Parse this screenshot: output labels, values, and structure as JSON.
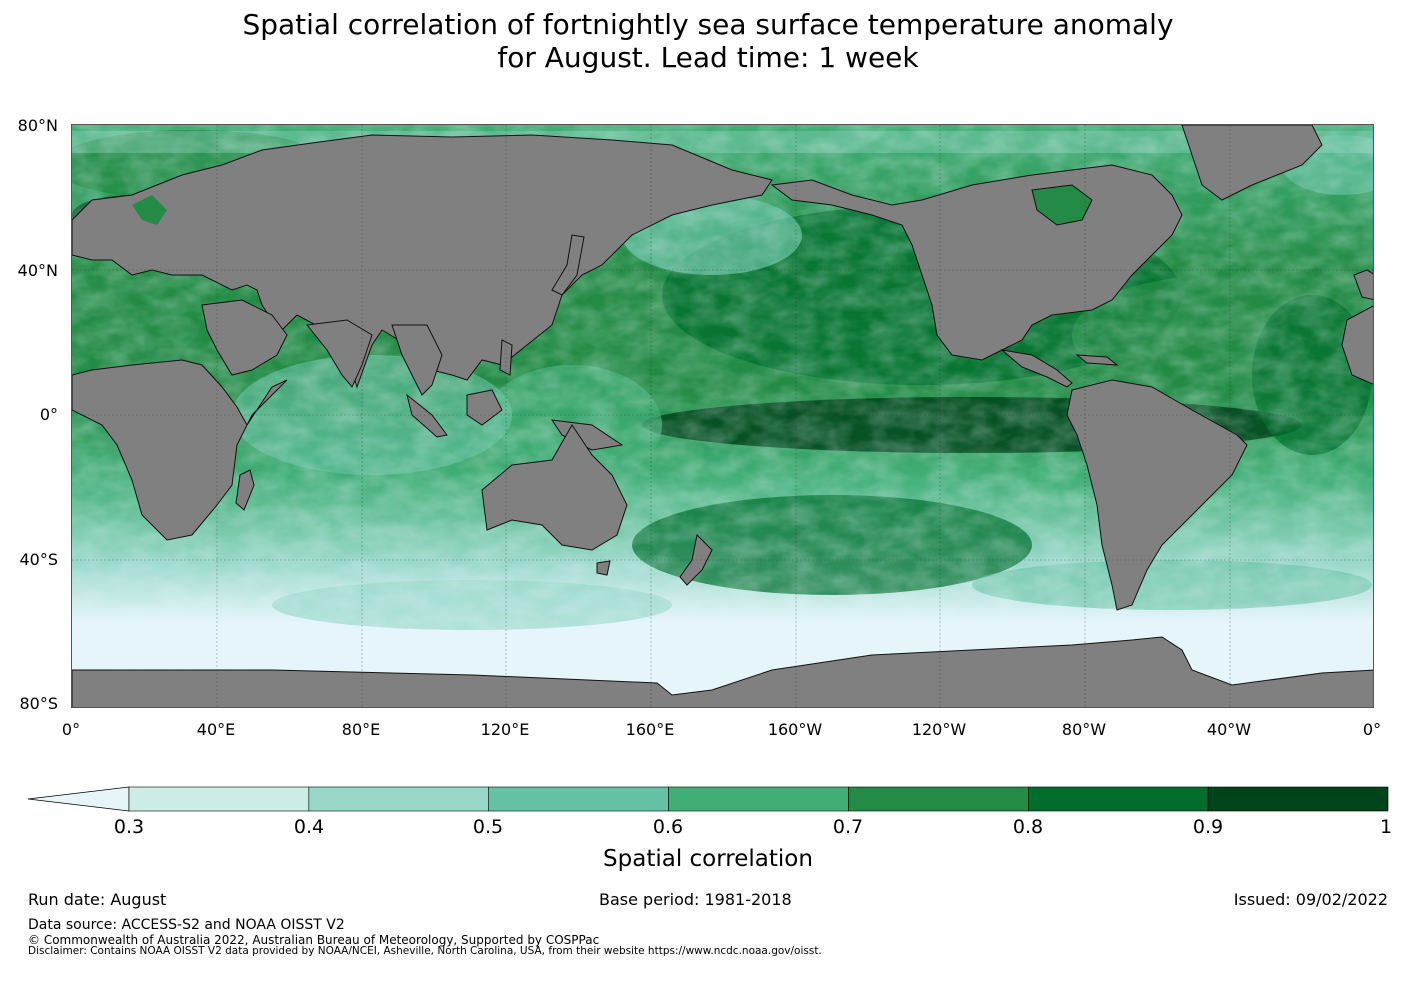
{
  "title": {
    "line1": "Spatial correlation of fortnightly sea surface temperature anomaly",
    "line2": "for August. Lead time: 1 week"
  },
  "map": {
    "lat_labels": [
      "80°N",
      "40°N",
      "0°",
      "40°S",
      "80°S"
    ],
    "lon_labels": [
      "0°",
      "40°E",
      "80°E",
      "120°E",
      "160°E",
      "160°W",
      "120°W",
      "80°W",
      "40°W",
      "0°"
    ],
    "land_color": "#808080",
    "gridlines": true
  },
  "colorbar": {
    "label": "Spatial correlation",
    "ticks": [
      "0.3",
      "0.4",
      "0.5",
      "0.6",
      "0.7",
      "0.8",
      "0.9",
      "1"
    ],
    "under_color": "#e5f5f9",
    "colors": [
      "#ccece6",
      "#99d8c9",
      "#66c2a4",
      "#41ae76",
      "#238b45",
      "#006d2c",
      "#00441b"
    ],
    "extend": "min"
  },
  "footer": {
    "run_date": "Run date: August",
    "base_period": "Base period: 1981-2018",
    "issued": "Issued: 09/02/2022",
    "data_source": "Data source: ACCESS-S2 and NOAA OISST V2",
    "copyright": "© Commonwealth of Australia 2022, Australian Bureau of Meteorology, Supported by COSPPac",
    "disclaimer": "Disclaimer: Contains NOAA OISST V2 data provided by NOAA/NCEI, Asheville, North Carolina, USA, from their website https://www.ncdc.noaa.gov/oisst."
  }
}
